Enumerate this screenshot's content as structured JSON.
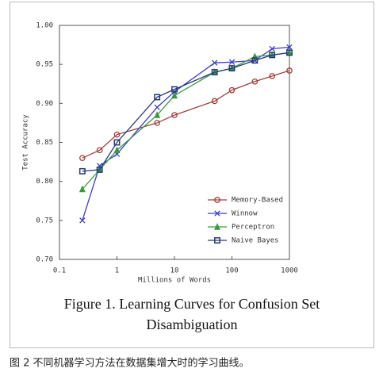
{
  "chart_data": {
    "type": "line",
    "x_label": "Millions of Words",
    "y_label": "Test Accuracy",
    "x": [
      0.25,
      0.5,
      1,
      5,
      10,
      50,
      100,
      250,
      500,
      1000
    ],
    "xlim": [
      0.1,
      1000
    ],
    "xticks": [
      0.1,
      1,
      10,
      100,
      1000
    ],
    "xscale": "log",
    "ylim": [
      0.7,
      1.0
    ],
    "yticks": [
      {
        "value": 0.7,
        "label": "0.70"
      },
      0.75,
      {
        "value": 0.8,
        "label": "0.80"
      },
      0.85,
      {
        "value": 0.9,
        "label": "0.90"
      },
      0.95,
      {
        "value": 1.0,
        "label": "1.00"
      }
    ],
    "legend": "lower right",
    "series": [
      {
        "name": "Memory-Based",
        "color": "#a0413c",
        "marker": "circle",
        "values": [
          0.83,
          0.84,
          0.86,
          0.875,
          0.885,
          0.903,
          0.917,
          0.928,
          0.935,
          0.942
        ]
      },
      {
        "name": "Winnow",
        "color": "#3c3cd0",
        "marker": "x",
        "values": [
          0.75,
          0.82,
          0.835,
          0.895,
          0.915,
          0.952,
          0.953,
          0.955,
          0.97,
          0.972
        ]
      },
      {
        "name": "Perceptron",
        "color": "#3a9a3a",
        "marker": "triangle",
        "values": [
          0.79,
          0.815,
          0.84,
          0.885,
          0.91,
          0.94,
          0.945,
          0.96,
          0.962,
          0.965
        ]
      },
      {
        "name": "Naive Bayes",
        "color": "#253a78",
        "marker": "square",
        "values": [
          0.813,
          0.815,
          0.85,
          0.908,
          0.918,
          0.94,
          0.945,
          0.955,
          0.962,
          0.965
        ]
      }
    ]
  },
  "figure_caption": [
    "Figure 1. Learning Curves for Confusion Set",
    "Disambiguation"
  ],
  "page_caption": "图 2 不同机器学习方法在数据集增大时的学习曲线。"
}
